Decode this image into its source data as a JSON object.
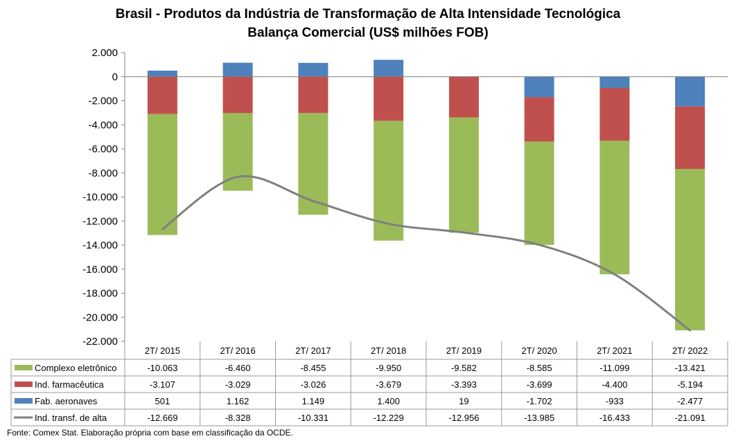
{
  "chart_data": {
    "type": "bar",
    "title": "Brasil - Produtos da Indústria de Transformação de Alta Intensidade Tecnológica",
    "subtitle": "Balança Comercial (US$ milhões FOB)",
    "categories": [
      "2T/ 2015",
      "2T/ 2016",
      "2T/ 2017",
      "2T/ 2018",
      "2T/ 2019",
      "2T/ 2020",
      "2T/ 2021",
      "2T/ 2022"
    ],
    "ylim": [
      -22000,
      2000
    ],
    "yticks": [
      2000,
      0,
      -2000,
      -4000,
      -6000,
      -8000,
      -10000,
      -12000,
      -14000,
      -16000,
      -18000,
      -20000,
      -22000
    ],
    "ytick_labels": [
      "2.000",
      "0",
      "-2.000",
      "-4.000",
      "-6.000",
      "-8.000",
      "-10.000",
      "-12.000",
      "-14.000",
      "-16.000",
      "-18.000",
      "-20.000",
      "-22.000"
    ],
    "grid": false,
    "stacked": true,
    "legend": "data-table",
    "series": [
      {
        "name": "Complexo eletrônico",
        "type": "bar",
        "color": "#9BBB59",
        "values": [
          -10063,
          -6460,
          -8455,
          -9950,
          -9582,
          -8585,
          -11099,
          -13421
        ],
        "labels": [
          "-10.063",
          "-6.460",
          "-8.455",
          "-9.950",
          "-9.582",
          "-8.585",
          "-11.099",
          "-13.421"
        ]
      },
      {
        "name": "Ind. farmacêutica",
        "type": "bar",
        "color": "#C0504D",
        "values": [
          -3107,
          -3029,
          -3026,
          -3679,
          -3393,
          -3699,
          -4400,
          -5194
        ],
        "labels": [
          "-3.107",
          "-3.029",
          "-3.026",
          "-3.679",
          "-3.393",
          "-3.699",
          "-4.400",
          "-5.194"
        ]
      },
      {
        "name": "Fab. aeronaves",
        "type": "bar",
        "color": "#4F81BD",
        "values": [
          501,
          1162,
          1149,
          1400,
          19,
          -1702,
          -933,
          -2477
        ],
        "labels": [
          "501",
          "1.162",
          "1.149",
          "1.400",
          "19",
          "-1.702",
          "-933",
          "-2.477"
        ]
      },
      {
        "name": "Ind. transf. de alta",
        "type": "line",
        "color": "#7F7F7F",
        "values": [
          -12669,
          -8328,
          -10331,
          -12229,
          -12956,
          -13985,
          -16433,
          -21091
        ],
        "labels": [
          "-12.669",
          "-8.328",
          "-10.331",
          "-12.229",
          "-12.956",
          "-13.985",
          "-16.433",
          "-21.091"
        ]
      }
    ],
    "source": "Fonte:  Comex Stat. Elaboração própria com base em classificação da OCDE."
  }
}
